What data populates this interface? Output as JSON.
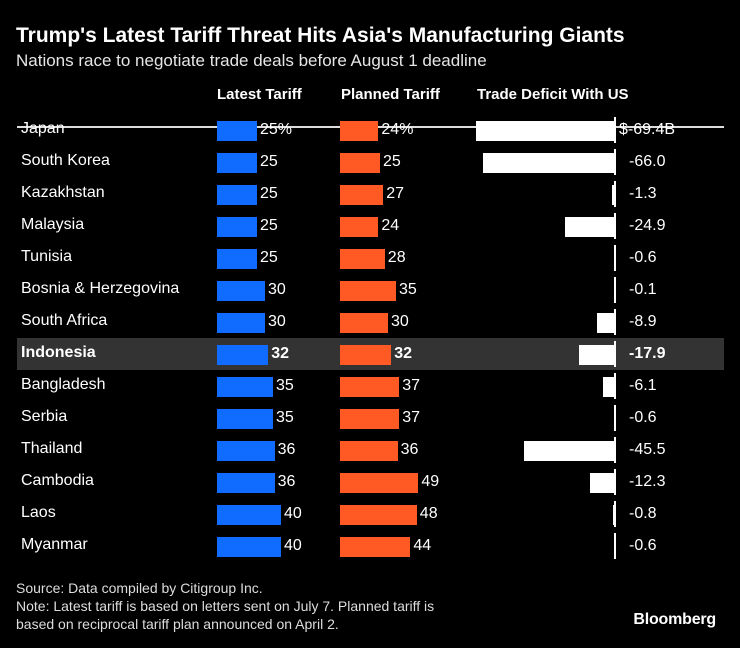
{
  "title": "Trump's Latest Tariff Threat Hits Asia's Manufacturing Giants",
  "subtitle": "Nations race to negotiate trade deals before August 1 deadline",
  "source": "Source: Data compiled by Citigroup Inc.",
  "note_line1": "Note: Latest tariff is based on letters sent on July 7. Planned tariff is",
  "note_line2": "based on reciprocal tariff plan announced on April 2.",
  "logo": "Bloomberg",
  "chart_data": {
    "type": "table",
    "columns": [
      "Latest Tariff",
      "Planned Tariff",
      "Trade Deficit With US"
    ],
    "colors": {
      "latest": "#0f6cff",
      "planned": "#ff5a24",
      "deficit": "#ffffff",
      "highlight_row": "#333333"
    },
    "highlight": "Indonesia",
    "units": {
      "tariff": "%",
      "deficit": "$B"
    },
    "rows": [
      {
        "country": "Japan",
        "latest": 25,
        "planned": 24,
        "deficit": -69.4,
        "latest_label": "25%",
        "planned_label": "24%",
        "deficit_label": "$-69.4B"
      },
      {
        "country": "South Korea",
        "latest": 25,
        "planned": 25,
        "deficit": -66.0,
        "latest_label": "25",
        "planned_label": "25",
        "deficit_label": "-66.0"
      },
      {
        "country": "Kazakhstan",
        "latest": 25,
        "planned": 27,
        "deficit": -1.3,
        "latest_label": "25",
        "planned_label": "27",
        "deficit_label": "-1.3"
      },
      {
        "country": "Malaysia",
        "latest": 25,
        "planned": 24,
        "deficit": -24.9,
        "latest_label": "25",
        "planned_label": "24",
        "deficit_label": "-24.9"
      },
      {
        "country": "Tunisia",
        "latest": 25,
        "planned": 28,
        "deficit": -0.6,
        "latest_label": "25",
        "planned_label": "28",
        "deficit_label": "-0.6"
      },
      {
        "country": "Bosnia & Herzegovina",
        "latest": 30,
        "planned": 35,
        "deficit": -0.1,
        "latest_label": "30",
        "planned_label": "35",
        "deficit_label": "-0.1"
      },
      {
        "country": "South Africa",
        "latest": 30,
        "planned": 30,
        "deficit": -8.9,
        "latest_label": "30",
        "planned_label": "30",
        "deficit_label": "-8.9"
      },
      {
        "country": "Indonesia",
        "latest": 32,
        "planned": 32,
        "deficit": -17.9,
        "latest_label": "32",
        "planned_label": "32",
        "deficit_label": "-17.9"
      },
      {
        "country": "Bangladesh",
        "latest": 35,
        "planned": 37,
        "deficit": -6.1,
        "latest_label": "35",
        "planned_label": "37",
        "deficit_label": "-6.1"
      },
      {
        "country": "Serbia",
        "latest": 35,
        "planned": 37,
        "deficit": -0.6,
        "latest_label": "35",
        "planned_label": "37",
        "deficit_label": "-0.6"
      },
      {
        "country": "Thailand",
        "latest": 36,
        "planned": 36,
        "deficit": -45.5,
        "latest_label": "36",
        "planned_label": "36",
        "deficit_label": "-45.5"
      },
      {
        "country": "Cambodia",
        "latest": 36,
        "planned": 49,
        "deficit": -12.3,
        "latest_label": "36",
        "planned_label": "49",
        "deficit_label": "-12.3"
      },
      {
        "country": "Laos",
        "latest": 40,
        "planned": 48,
        "deficit": -0.8,
        "latest_label": "40",
        "planned_label": "48",
        "deficit_label": "-0.8"
      },
      {
        "country": "Myanmar",
        "latest": 40,
        "planned": 44,
        "deficit": -0.6,
        "latest_label": "40",
        "planned_label": "44",
        "deficit_label": "-0.6"
      }
    ]
  }
}
